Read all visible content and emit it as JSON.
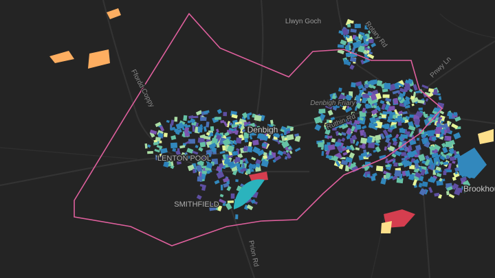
{
  "labels": {
    "llwyn_goch": "Llwyn Goch",
    "ffordd_coppy": "Ffordd Coppy",
    "denbigh": "Denbigh",
    "denbigh_friary": "Denbigh Friary",
    "lenton_pool": "LENTON POOL",
    "smithfield": "SMITHFIELD",
    "ruthin_rd": "Ruthin Rd",
    "rotary_rd": "Rotary Rd",
    "prion_rd": "Prion Rd",
    "pnwy_ln": "Pnwy Ln",
    "brookhouse": "Brookhouse"
  }
}
